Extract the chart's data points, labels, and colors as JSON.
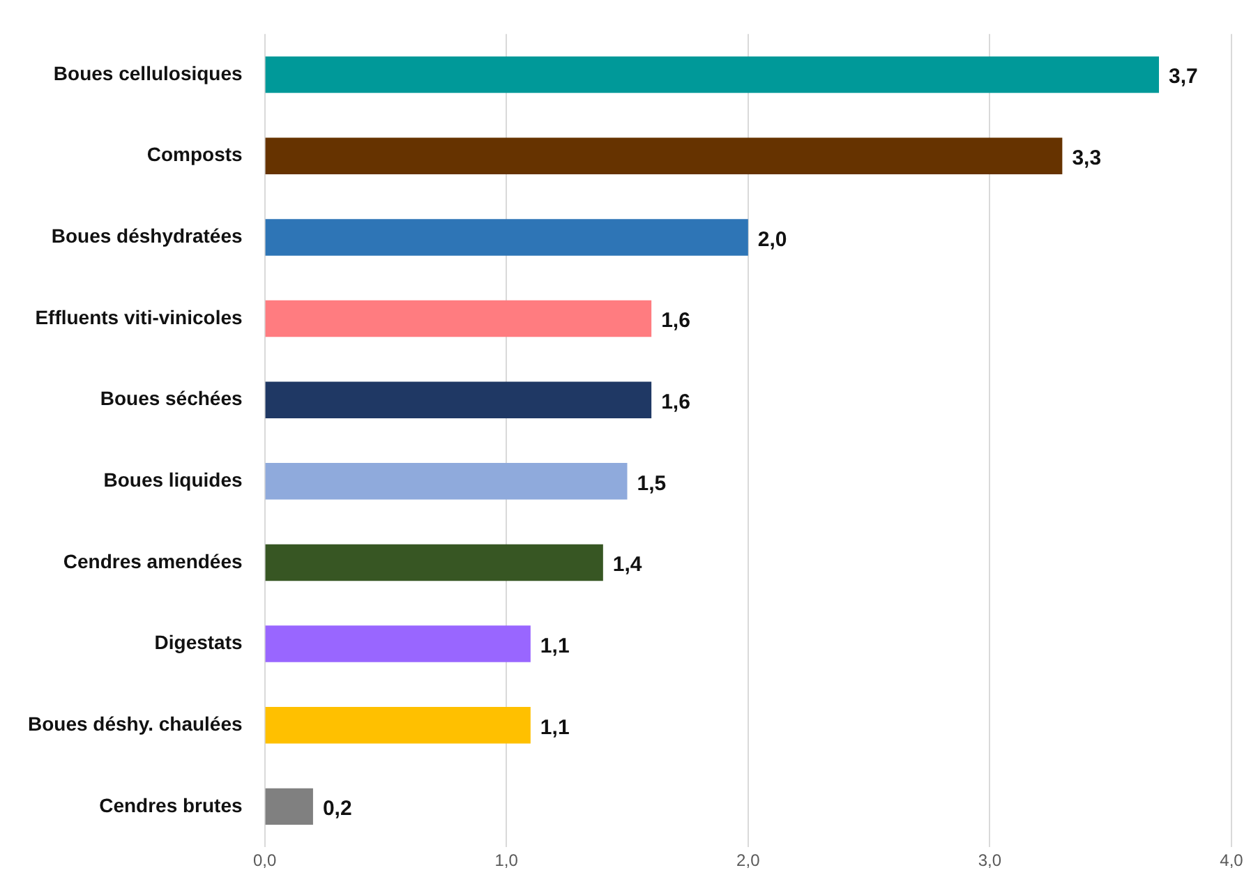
{
  "chart_data": {
    "type": "bar",
    "orientation": "horizontal",
    "categories": [
      "Boues cellulosiques",
      "Composts",
      "Boues déshydratées",
      "Effluents viti-vinicoles",
      "Boues séchées",
      "Boues liquides",
      "Cendres amendées",
      "Digestats",
      "Boues déshy. chaulées",
      "Cendres brutes"
    ],
    "values": [
      3.7,
      3.3,
      2.0,
      1.6,
      1.6,
      1.5,
      1.4,
      1.1,
      1.1,
      0.2
    ],
    "value_labels": [
      "3,7",
      "3,3",
      "2,0",
      "1,6",
      "1,6",
      "1,5",
      "1,4",
      "1,1",
      "1,1",
      "0,2"
    ],
    "colors": [
      "#009999",
      "#663300",
      "#2e75b6",
      "#ff7c80",
      "#1f3864",
      "#8faadc",
      "#375623",
      "#9966ff",
      "#ffc000",
      "#808080"
    ],
    "xlim": [
      0,
      4
    ],
    "xticks": [
      {
        "value": 0,
        "label": "0,0"
      },
      {
        "value": 1,
        "label": "1,0"
      },
      {
        "value": 2,
        "label": "2,0"
      },
      {
        "value": 3,
        "label": "3,0"
      },
      {
        "value": 4,
        "label": "4,0"
      }
    ],
    "grid": "x",
    "legend": false
  }
}
